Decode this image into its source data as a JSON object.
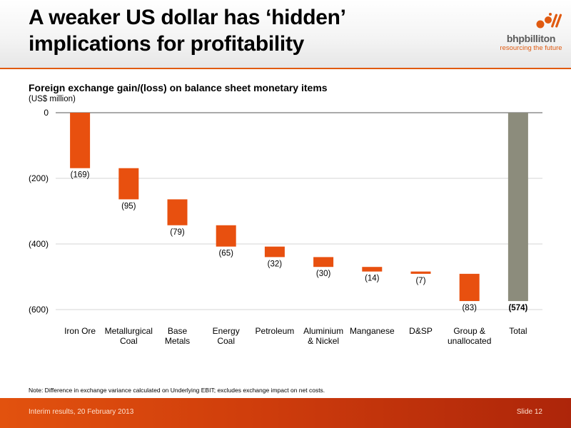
{
  "header": {
    "title_line1": "A weaker US dollar has ‘hidden’",
    "title_line2": "implications for profitability"
  },
  "logo": {
    "wordmark": "bhpbilliton",
    "tagline": "resourcing the future",
    "brand_color": "#e05a10"
  },
  "chart": {
    "title": "Foreign exchange gain/(loss) on balance sheet monetary items",
    "subtitle": "(US$ million)"
  },
  "chart_data": {
    "type": "bar",
    "subtype": "waterfall",
    "categories": [
      "Iron Ore",
      "Metallurgical\nCoal",
      "Base\nMetals",
      "Energy\nCoal",
      "Petroleum",
      "Aluminium\n& Nickel",
      "Manganese",
      "D&SP",
      "Group &\nunallocated",
      "Total"
    ],
    "values": [
      -169,
      -95,
      -79,
      -65,
      -32,
      -30,
      -14,
      -7,
      -83,
      -574
    ],
    "value_labels": [
      "(169)",
      "(95)",
      "(79)",
      "(65)",
      "(32)",
      "(30)",
      "(14)",
      "(7)",
      "(83)",
      "(574)"
    ],
    "is_total": [
      false,
      false,
      false,
      false,
      false,
      false,
      false,
      false,
      false,
      true
    ],
    "yticks": [
      0,
      -200,
      -400,
      -600
    ],
    "ytick_labels": [
      "0",
      "(200)",
      "(400)",
      "(600)"
    ],
    "ylim": [
      -600,
      0
    ],
    "grid": true,
    "legend": "none",
    "colors": {
      "step": "#e8500f",
      "total": "#8c8c7c"
    }
  },
  "note": "Note:  Difference in exchange variance calculated on Underlying EBIT; excludes exchange impact on net costs.",
  "footer": {
    "left": "Interim results, 20 February 2013",
    "right": "Slide 12"
  }
}
